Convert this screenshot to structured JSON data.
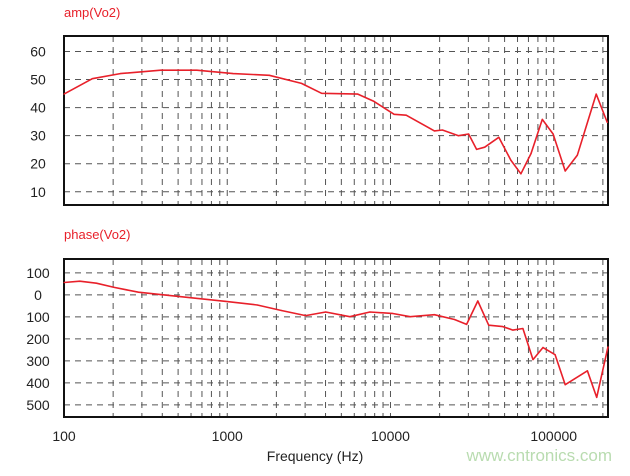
{
  "chart_data": [
    {
      "type": "line",
      "title": "amp(Vo2)",
      "x_scale": "log",
      "xlim": [
        100,
        215000
      ],
      "ylim": [
        5.3,
        65.5
      ],
      "grid": true,
      "y_ticks": [
        60,
        50,
        40,
        30,
        20,
        10
      ],
      "y_tick_labels": [
        "60",
        "50",
        "40",
        "30",
        "20",
        "10"
      ],
      "line_color": "#e8202a",
      "series": [
        {
          "x": [
            100,
            149,
            221,
            391,
            651,
            1086,
            1811,
            2851,
            3786,
            6310,
            7925,
            10520,
            12480,
            18580,
            20800,
            26100,
            30100,
            33700,
            37770,
            46050,
            54600,
            62900,
            72600,
            85100,
            99100,
            117500,
            139400,
            182000,
            213000
          ],
          "y": [
            44.8,
            50.3,
            52.1,
            53.3,
            53.3,
            52.1,
            51.5,
            48.6,
            45.1,
            44.8,
            42.2,
            37.6,
            37.3,
            31.7,
            32,
            30,
            30.6,
            25.1,
            25.9,
            29.4,
            21.3,
            16.4,
            23.6,
            35.8,
            30.6,
            17.4,
            23,
            44.8,
            34.7
          ]
        }
      ]
    },
    {
      "type": "line",
      "title": "phase(Vo2)",
      "xlabel": "Frequency (Hz)",
      "x_scale": "log",
      "xlim": [
        100,
        215000
      ],
      "ylim": [
        -555,
        163
      ],
      "grid": true,
      "x_ticks": [
        100,
        1000,
        10000,
        100000
      ],
      "x_tick_labels": [
        "100",
        "1000",
        "10000",
        "100000"
      ],
      "y_ticks": [
        100,
        0,
        -100,
        -200,
        -300,
        -400,
        -500
      ],
      "y_tick_labels": [
        "100",
        "0",
        "100",
        "200",
        "300",
        "400",
        "500"
      ],
      "line_color": "#e8202a",
      "series": [
        {
          "x": [
            100,
            125,
            158,
            203,
            286,
            391,
            615,
            969,
            1527,
            2147,
            3019,
            4008,
            5636,
            7482,
            10230,
            13210,
            18580,
            24660,
            29240,
            34280,
            39970,
            48770,
            56230,
            64750,
            74650,
            86000,
            102000,
            117500,
            160700,
            183200,
            215000
          ],
          "y": [
            56,
            62,
            53,
            34,
            12,
            1,
            -14,
            -29,
            -46,
            -71,
            -94,
            -78,
            -99,
            -78,
            -84,
            -99,
            -90,
            -112,
            -134,
            -28,
            -138,
            -144,
            -160,
            -153,
            -294,
            -239,
            -272,
            -408,
            -345,
            -466,
            -236
          ]
        }
      ]
    }
  ],
  "watermark": "www.cntronics.com"
}
